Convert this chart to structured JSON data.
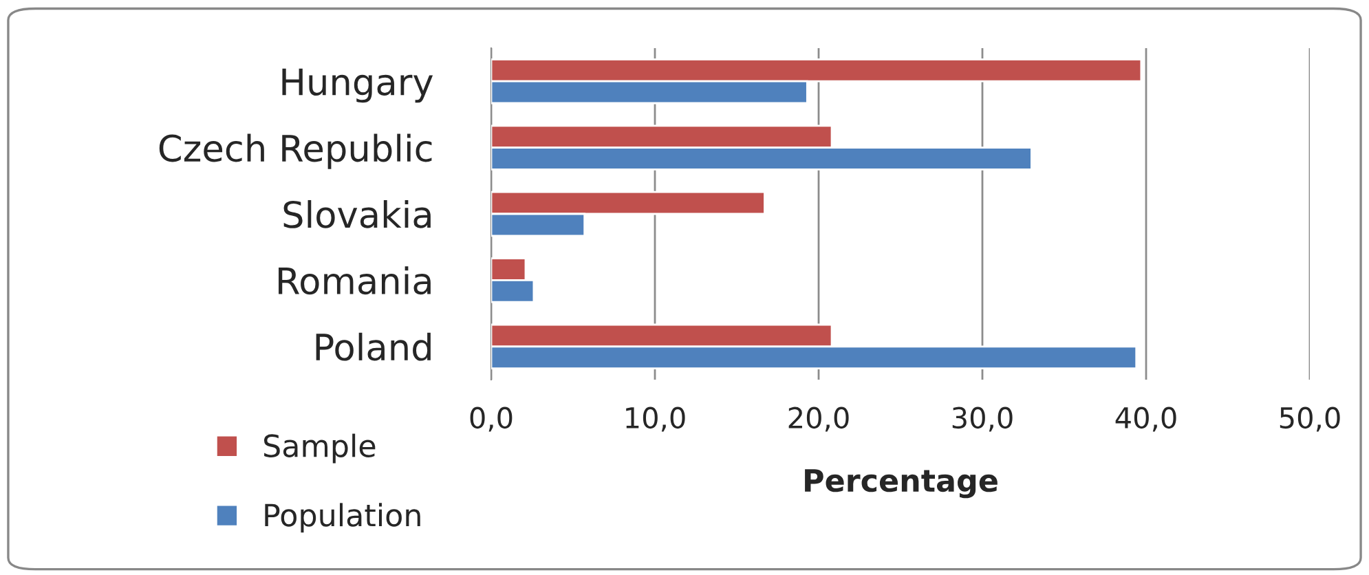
{
  "chart_data": {
    "type": "bar",
    "orientation": "horizontal",
    "xlabel": "Percentage",
    "categories": [
      "Hungary",
      "Czech Republic",
      "Slovakia",
      "Romania",
      "Poland"
    ],
    "series": [
      {
        "name": "Sample",
        "color": "#c0504d",
        "values": [
          39.7,
          20.8,
          16.7,
          2.1,
          20.8
        ]
      },
      {
        "name": "Population",
        "color": "#4f81bd",
        "values": [
          19.3,
          33.0,
          5.7,
          2.6,
          39.4
        ]
      }
    ],
    "xlim": [
      0,
      50
    ],
    "xticks": [
      {
        "value": 0,
        "label": "0,0"
      },
      {
        "value": 10,
        "label": "10,0"
      },
      {
        "value": 20,
        "label": "20,0"
      },
      {
        "value": 30,
        "label": "30,0"
      },
      {
        "value": 40,
        "label": "40,0"
      },
      {
        "value": 50,
        "label": "50,0"
      }
    ],
    "grid": "x",
    "legend": "bottom left"
  }
}
